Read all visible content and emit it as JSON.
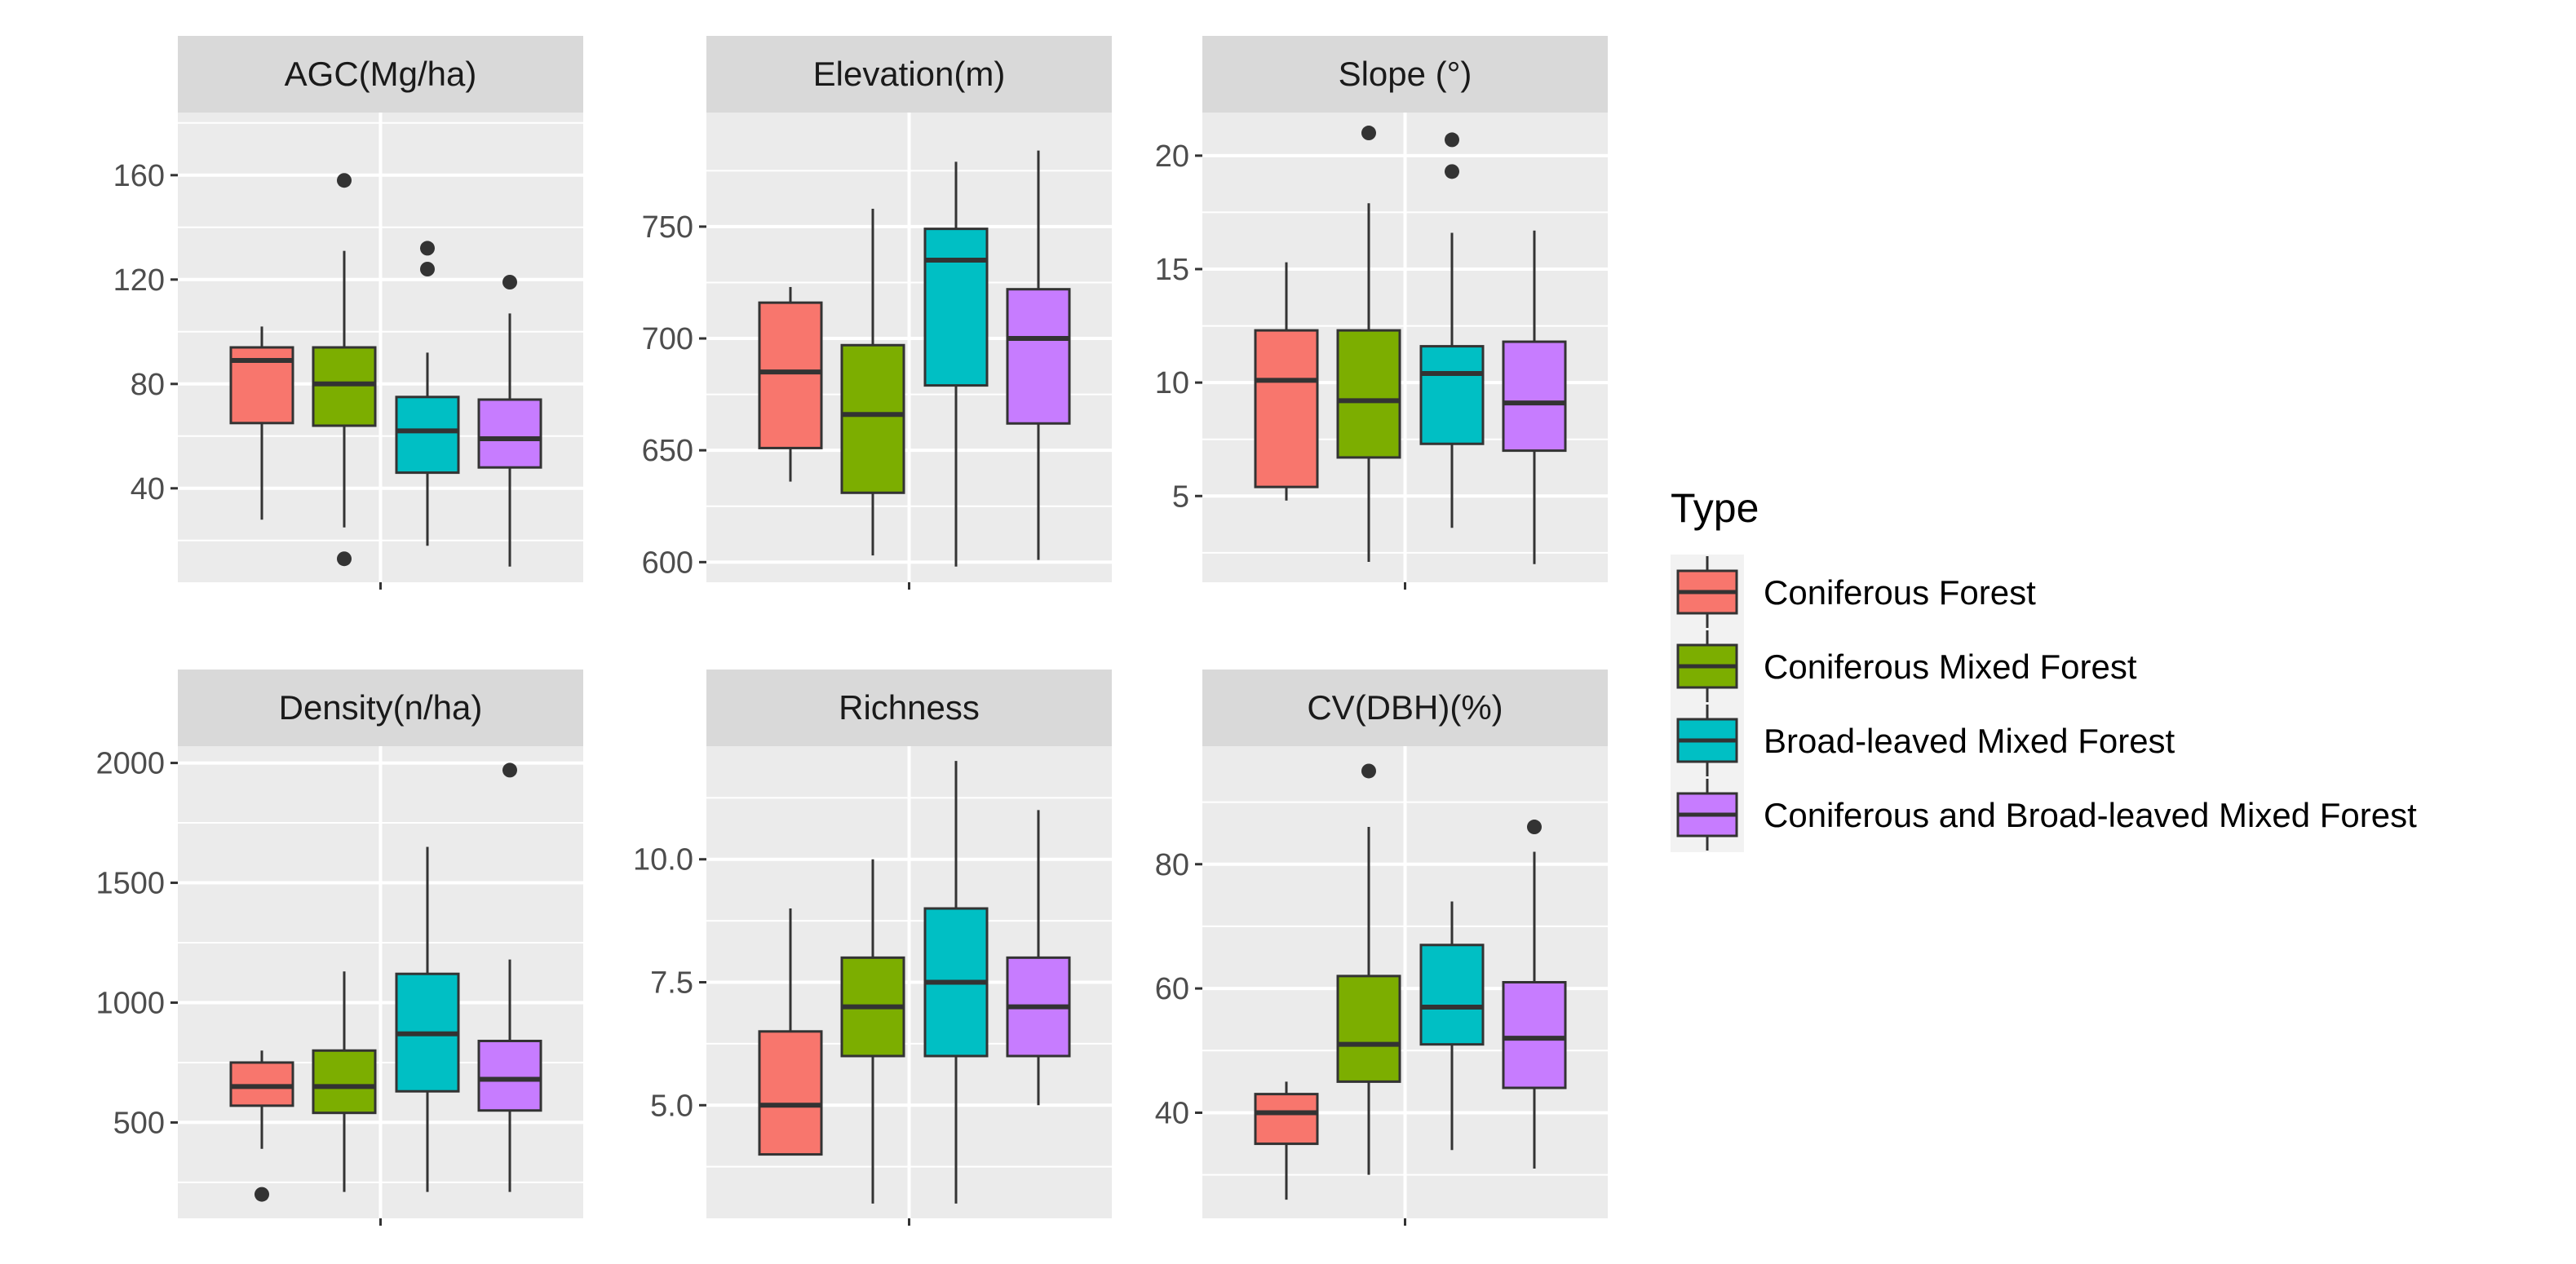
{
  "chart_data": [
    {
      "type": "boxplot",
      "title": "AGC(Mg/ha)",
      "ylim": [
        4,
        184
      ],
      "yticks": [
        40,
        80,
        120,
        160
      ],
      "ytick_labels": [
        "40",
        "80",
        "120",
        "160"
      ],
      "boxes": [
        {
          "series": "Coniferous Forest",
          "min": 28,
          "q1": 65,
          "median": 89,
          "q3": 94,
          "max": 102,
          "outliers": []
        },
        {
          "series": "Coniferous Mixed Forest",
          "min": 25,
          "q1": 64,
          "median": 80,
          "q3": 94,
          "max": 131,
          "outliers": [
            158,
            13
          ]
        },
        {
          "series": "Broad-leaved Mixed Forest",
          "min": 18,
          "q1": 46,
          "median": 62,
          "q3": 75,
          "max": 92,
          "outliers": [
            132,
            124
          ]
        },
        {
          "series": "Coniferous and Broad-leaved Mixed Forest",
          "min": 10,
          "q1": 48,
          "median": 59,
          "q3": 74,
          "max": 107,
          "outliers": [
            119
          ]
        }
      ]
    },
    {
      "type": "boxplot",
      "title": "Elevation(m)",
      "ylim": [
        591,
        801
      ],
      "yticks": [
        600,
        650,
        700,
        750
      ],
      "ytick_labels": [
        "600",
        "650",
        "700",
        "750"
      ],
      "boxes": [
        {
          "series": "Coniferous Forest",
          "min": 636,
          "q1": 651,
          "median": 685,
          "q3": 716,
          "max": 723,
          "outliers": []
        },
        {
          "series": "Coniferous Mixed Forest",
          "min": 603,
          "q1": 631,
          "median": 666,
          "q3": 697,
          "max": 758,
          "outliers": []
        },
        {
          "series": "Broad-leaved Mixed Forest",
          "min": 598,
          "q1": 679,
          "median": 735,
          "q3": 749,
          "max": 779,
          "outliers": []
        },
        {
          "series": "Coniferous and Broad-leaved Mixed Forest",
          "min": 601,
          "q1": 662,
          "median": 700,
          "q3": 722,
          "max": 784,
          "outliers": []
        }
      ]
    },
    {
      "type": "boxplot",
      "title": "Slope (°)",
      "ylim": [
        1.2,
        21.9
      ],
      "yticks": [
        5,
        10,
        15,
        20
      ],
      "ytick_labels": [
        "5",
        "10",
        "15",
        "20"
      ],
      "boxes": [
        {
          "series": "Coniferous Forest",
          "min": 4.8,
          "q1": 5.4,
          "median": 10.1,
          "q3": 12.3,
          "max": 15.3,
          "outliers": []
        },
        {
          "series": "Coniferous Mixed Forest",
          "min": 2.1,
          "q1": 6.7,
          "median": 9.2,
          "q3": 12.3,
          "max": 17.9,
          "outliers": [
            21.0
          ]
        },
        {
          "series": "Broad-leaved Mixed Forest",
          "min": 3.6,
          "q1": 7.3,
          "median": 10.4,
          "q3": 11.6,
          "max": 16.6,
          "outliers": [
            20.7,
            19.3
          ]
        },
        {
          "series": "Coniferous and Broad-leaved Mixed Forest",
          "min": 2.0,
          "q1": 7.0,
          "median": 9.1,
          "q3": 11.8,
          "max": 16.7,
          "outliers": []
        }
      ]
    },
    {
      "type": "boxplot",
      "title": "Density(n/ha)",
      "ylim": [
        100,
        2070
      ],
      "yticks": [
        500,
        1000,
        1500,
        2000
      ],
      "ytick_labels": [
        "500",
        "1000",
        "1500",
        "2000"
      ],
      "boxes": [
        {
          "series": "Coniferous Forest",
          "min": 390,
          "q1": 570,
          "median": 650,
          "q3": 750,
          "max": 800,
          "outliers": [
            200
          ]
        },
        {
          "series": "Coniferous Mixed Forest",
          "min": 210,
          "q1": 540,
          "median": 650,
          "q3": 800,
          "max": 1130,
          "outliers": []
        },
        {
          "series": "Broad-leaved Mixed Forest",
          "min": 210,
          "q1": 630,
          "median": 870,
          "q3": 1120,
          "max": 1650,
          "outliers": []
        },
        {
          "series": "Coniferous and Broad-leaved Mixed Forest",
          "min": 210,
          "q1": 550,
          "median": 680,
          "q3": 840,
          "max": 1180,
          "outliers": [
            1970
          ]
        }
      ]
    },
    {
      "type": "boxplot",
      "title": "Richness",
      "ylim": [
        2.7,
        12.3
      ],
      "yticks": [
        5.0,
        7.5,
        10.0
      ],
      "ytick_labels": [
        "5.0",
        "7.5",
        "10.0"
      ],
      "boxes": [
        {
          "series": "Coniferous Forest",
          "min": 4,
          "q1": 4,
          "median": 5,
          "q3": 6.5,
          "max": 9,
          "outliers": []
        },
        {
          "series": "Coniferous Mixed Forest",
          "min": 3,
          "q1": 6,
          "median": 7,
          "q3": 8,
          "max": 10,
          "outliers": []
        },
        {
          "series": "Broad-leaved Mixed Forest",
          "min": 3,
          "q1": 6,
          "median": 7.5,
          "q3": 9,
          "max": 12,
          "outliers": []
        },
        {
          "series": "Coniferous and Broad-leaved Mixed Forest",
          "min": 5,
          "q1": 6,
          "median": 7,
          "q3": 8,
          "max": 11,
          "outliers": []
        }
      ]
    },
    {
      "type": "boxplot",
      "title": "CV(DBH)(%)",
      "ylim": [
        23,
        99
      ],
      "yticks": [
        40,
        60,
        80
      ],
      "ytick_labels": [
        "40",
        "60",
        "80"
      ],
      "boxes": [
        {
          "series": "Coniferous Forest",
          "min": 26,
          "q1": 35,
          "median": 40,
          "q3": 43,
          "max": 45,
          "outliers": []
        },
        {
          "series": "Coniferous Mixed Forest",
          "min": 30,
          "q1": 45,
          "median": 51,
          "q3": 62,
          "max": 86,
          "outliers": [
            95
          ]
        },
        {
          "series": "Broad-leaved Mixed Forest",
          "min": 34,
          "q1": 51,
          "median": 57,
          "q3": 67,
          "max": 74,
          "outliers": []
        },
        {
          "series": "Coniferous and Broad-leaved Mixed Forest",
          "min": 31,
          "q1": 44,
          "median": 52,
          "q3": 61,
          "max": 82,
          "outliers": [
            86
          ]
        }
      ]
    }
  ],
  "legend": {
    "title": "Type",
    "entries": [
      {
        "label": "Coniferous Forest",
        "color": "#F8766D"
      },
      {
        "label": "Coniferous Mixed Forest",
        "color": "#7CAE00"
      },
      {
        "label": "Broad-leaved Mixed Forest",
        "color": "#00BFC4"
      },
      {
        "label": "Coniferous and Broad-leaved Mixed Forest",
        "color": "#C77CFF"
      }
    ]
  },
  "colors": {
    "panel_bg": "#EBEBEB",
    "strip_bg": "#D9D9D9",
    "grid": "#FFFFFF",
    "box_line": "#333333",
    "outlier": "#333333"
  }
}
